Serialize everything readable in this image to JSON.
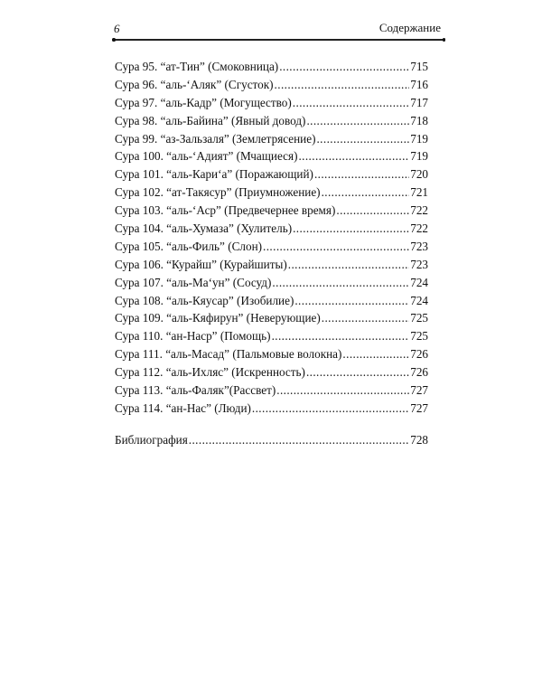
{
  "header": {
    "page_number": "6",
    "section_title": "Содержание"
  },
  "entries": [
    {
      "title": "Сура 95. “ат-Тин” (Смоковница)",
      "page": "715"
    },
    {
      "title": "Сура 96. “аль-‘Аляк” (Сгусток)",
      "page": "716"
    },
    {
      "title": "Сура 97. “аль-Кадр” (Могущество)",
      "page": "717"
    },
    {
      "title": "Сура 98. “аль-Байина” (Явный довод)",
      "page": "718"
    },
    {
      "title": "Сура 99. “аз-Зальзаля” (Землетрясение)",
      "page": "719"
    },
    {
      "title": "Сура 100. “аль-‘Адият” (Мчащиеся)",
      "page": "719"
    },
    {
      "title": "Сура 101. “аль-Кари‘а” (Поражающий)",
      "page": "720"
    },
    {
      "title": "Сура 102. “ат-Такясур” (Приумножение)",
      "page": "721"
    },
    {
      "title": "Сура 103. “аль-‘Аср” (Предвечернее время)",
      "page": "722"
    },
    {
      "title": "Сура 104. “аль-Хумаза” (Хулитель)",
      "page": "722"
    },
    {
      "title": "Сура 105. “аль-Филь” (Слон)",
      "page": "723"
    },
    {
      "title": "Сура 106. “Курайш” (Курайшиты)",
      "page": "723"
    },
    {
      "title": "Сура 107. “аль-Ма‘ун” (Сосуд) ",
      "page": "724"
    },
    {
      "title": "Сура 108. “аль-Кяусар” (Изобилие)",
      "page": "724"
    },
    {
      "title": "Сура 109. “аль-Кяфирун” (Неверующие)",
      "page": "725"
    },
    {
      "title": "Сура 110. “ан-Наср” (Помощь)",
      "page": "725"
    },
    {
      "title": "Сура 111. “аль-Масад” (Пальмовые волокна)",
      "page": "726"
    },
    {
      "title": "Сура 112. “аль-Ихляс” (Искренность)",
      "page": "726"
    },
    {
      "title": "Сура 113. “аль-Фаляк”(Рассвет)",
      "page": "727"
    },
    {
      "title": "Сура 114. “ан-Нас” (Люди)",
      "page": "727"
    }
  ],
  "bibliography": {
    "title": "Библиография",
    "page": "728"
  }
}
